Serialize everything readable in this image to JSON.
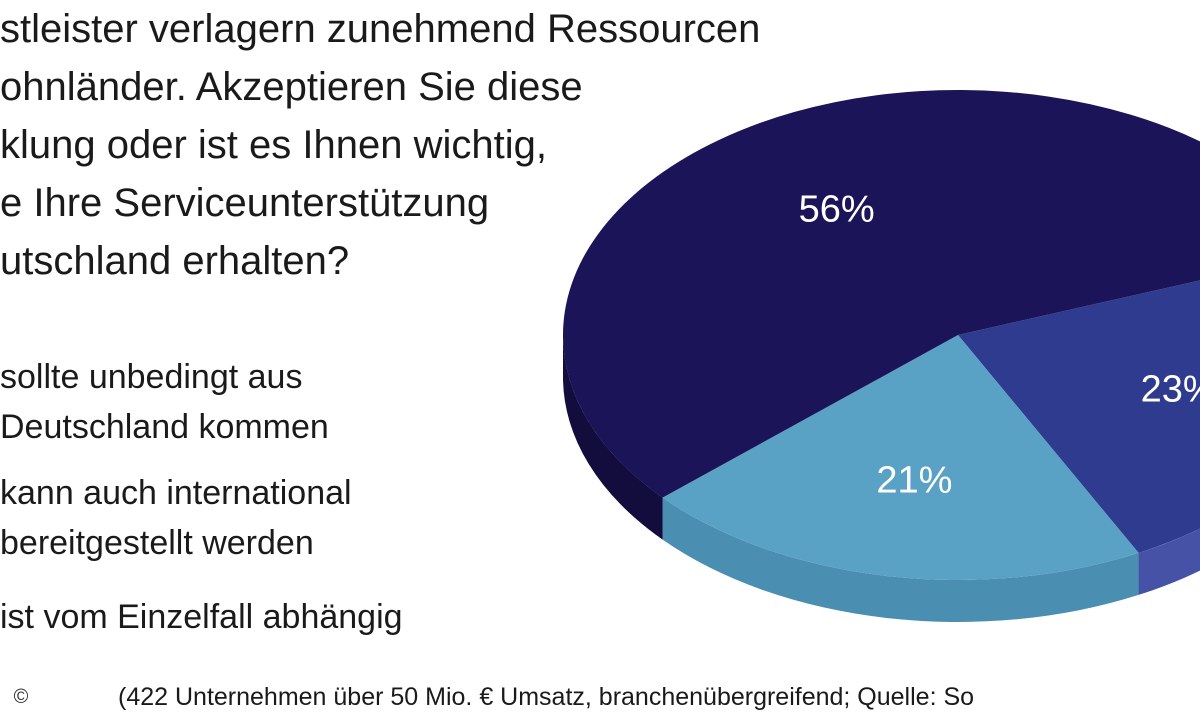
{
  "question_lines": [
    "stleister verlagern zunehmend Ressourcen",
    "ohnländer. Akzeptieren Sie diese",
    "klung oder ist es Ihnen wichtig,",
    "e Ihre Serviceunterstützung",
    "utschland erhalten?"
  ],
  "legend": [
    {
      "line1": "sollte unbedingt aus",
      "line2": "Deutschland kommen"
    },
    {
      "line1": "kann auch international",
      "line2": "bereitgestellt werden"
    },
    {
      "line1": "ist vom Einzelfall abhängig",
      "line2": ""
    }
  ],
  "footer": "(422 Unternehmen über 50 Mio. € Umsatz, branchenübergreifend; Quelle: So",
  "copyright_symbol": "©",
  "chart_data": {
    "type": "pie",
    "slices": [
      {
        "label": "56%",
        "value": 56,
        "color": "#1c1458",
        "side_color": "#120d3d"
      },
      {
        "label": "23%",
        "value": 23,
        "color": "#2e3b8f",
        "side_color": "#4652a6"
      },
      {
        "label": "21%",
        "value": 21,
        "color": "#5aa2c5",
        "side_color": "#4a8fb2"
      }
    ]
  }
}
